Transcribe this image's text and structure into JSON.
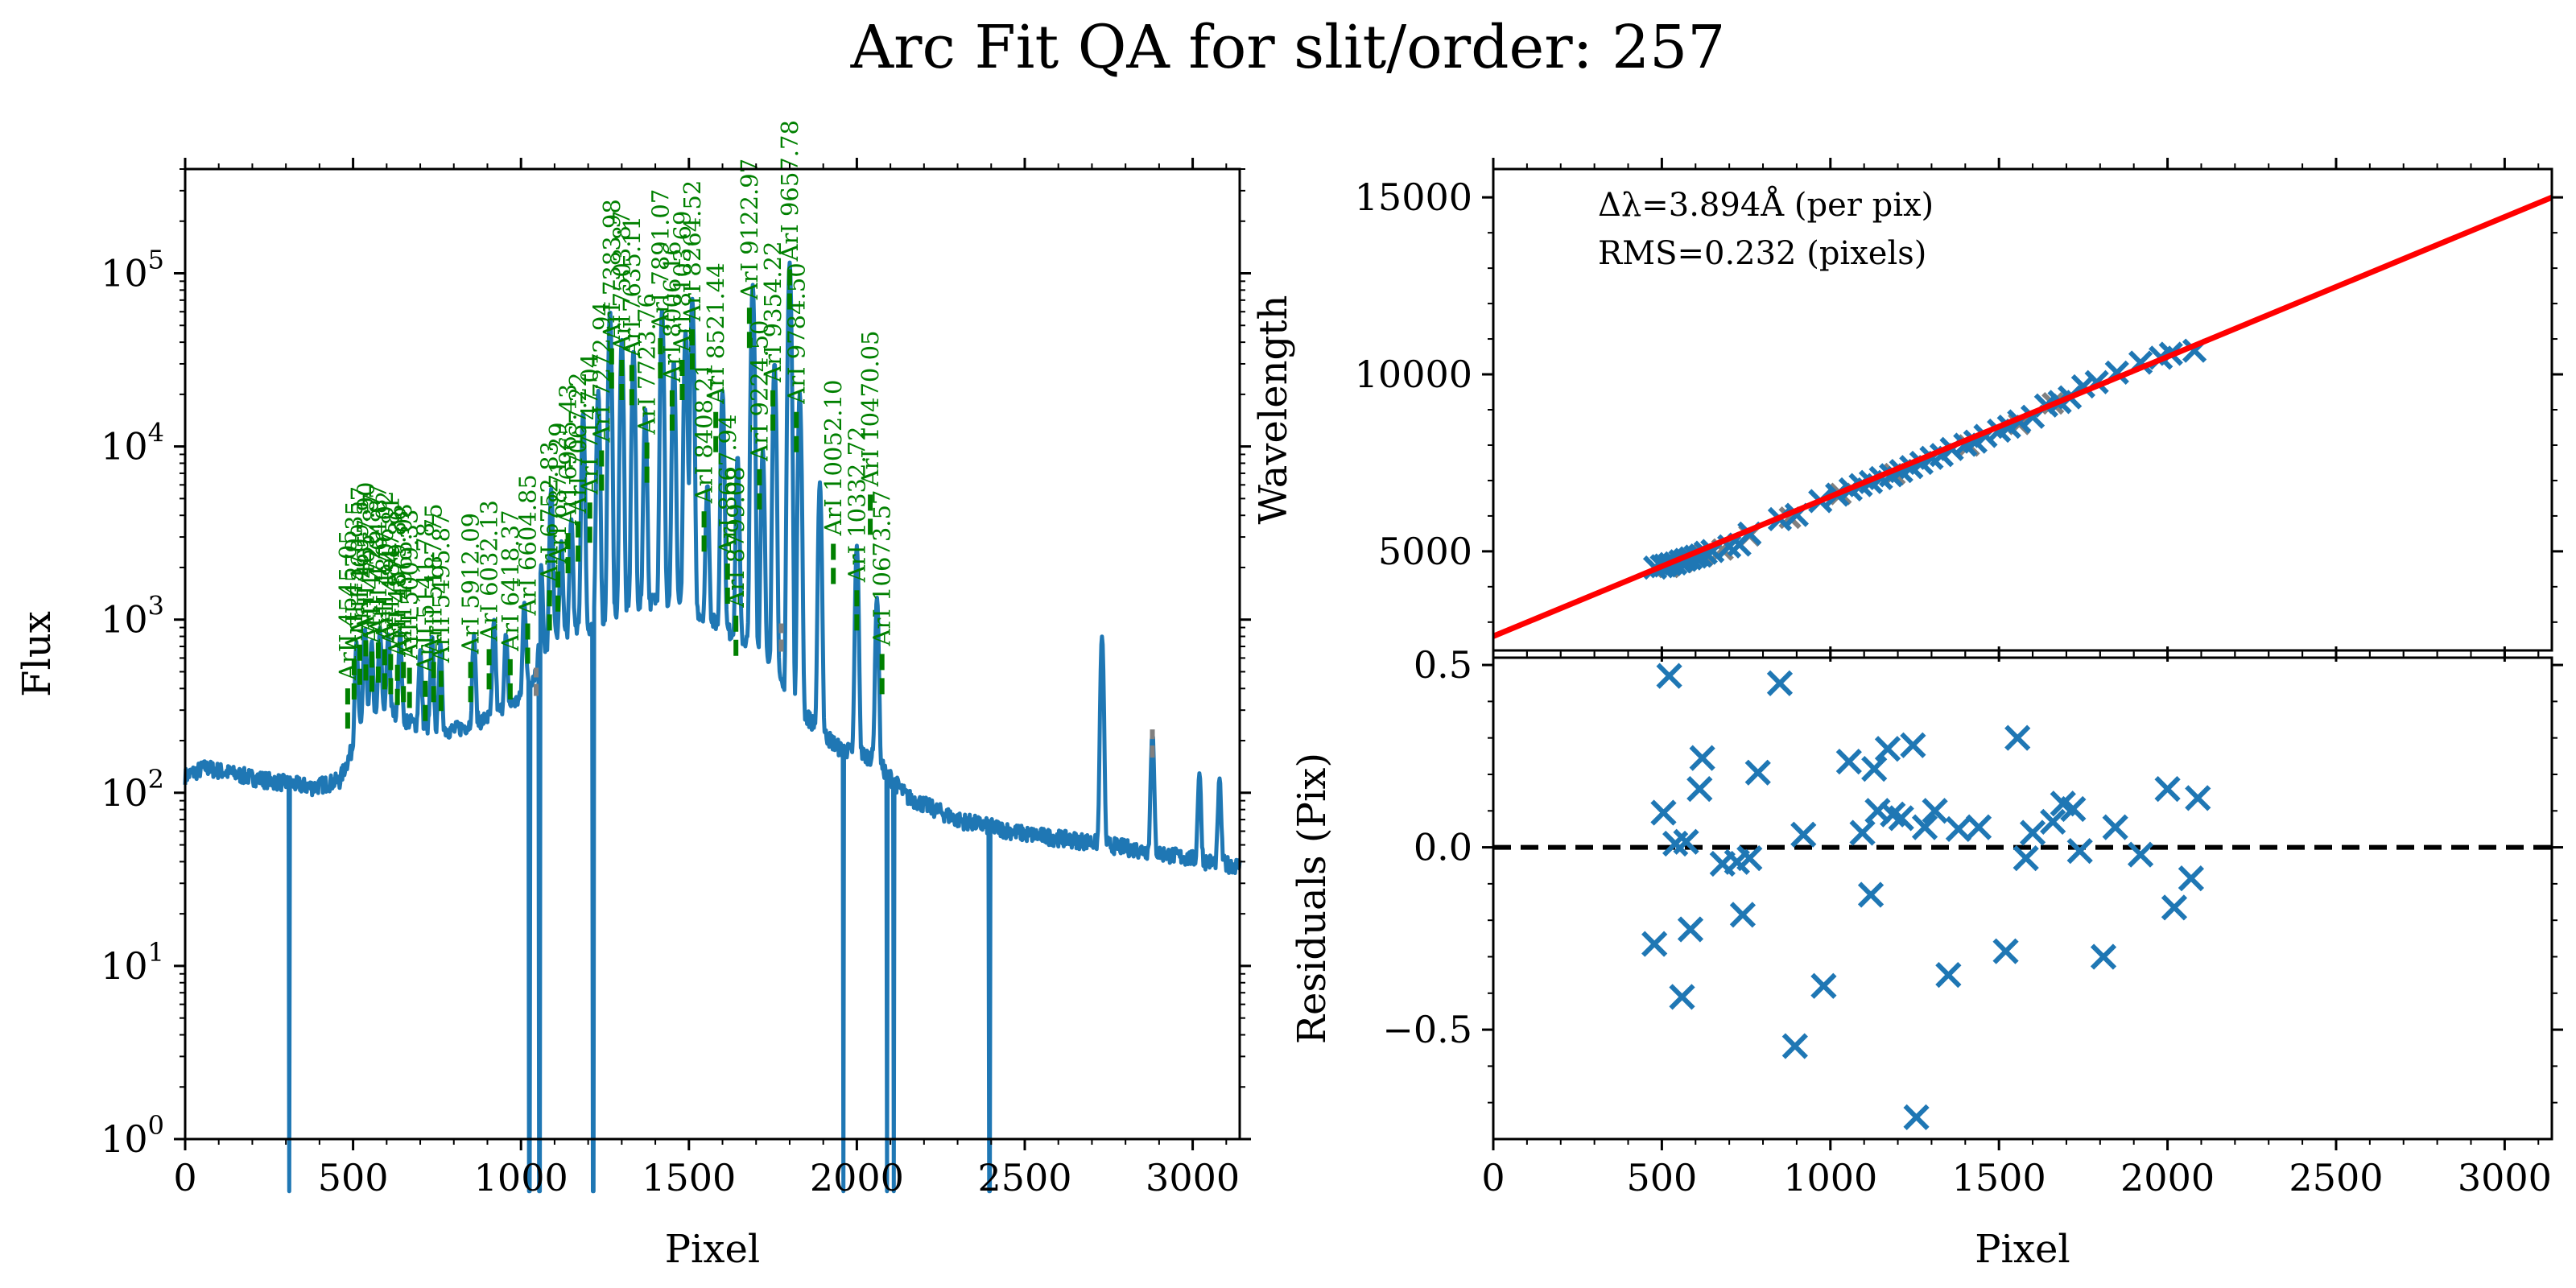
{
  "title": "Arc Fit QA for slit/order: 257",
  "colors": {
    "spectrum": "#1f77b4",
    "identified": "#008000",
    "unidentified": "#808080",
    "fit": "#ff0000",
    "points": "#1f77b4",
    "zero_line": "#000000"
  },
  "chart_data": [
    {
      "type": "line",
      "name": "spectrum",
      "xlabel": "Pixel",
      "ylabel": "Flux",
      "xlim": [
        0,
        3140
      ],
      "ylim": [
        1,
        400000
      ],
      "yscale": "log",
      "xticks": [
        0,
        500,
        1000,
        1500,
        2000,
        2500,
        3000
      ],
      "yticks": [
        {
          "value": 1,
          "base": "10",
          "exp": "0"
        },
        {
          "value": 10,
          "base": "10",
          "exp": "1"
        },
        {
          "value": 100,
          "base": "10",
          "exp": "2"
        },
        {
          "value": 1000,
          "base": "10",
          "exp": "3"
        },
        {
          "value": 10000,
          "base": "10",
          "exp": "4"
        },
        {
          "value": 100000,
          "base": "10",
          "exp": "5"
        }
      ],
      "continuum": [
        [
          0,
          125
        ],
        [
          60,
          140
        ],
        [
          150,
          128
        ],
        [
          250,
          118
        ],
        [
          380,
          108
        ],
        [
          460,
          118
        ],
        [
          520,
          230
        ],
        [
          600,
          300
        ],
        [
          700,
          240
        ],
        [
          800,
          230
        ],
        [
          900,
          270
        ],
        [
          1000,
          350
        ],
        [
          1100,
          800
        ],
        [
          1200,
          900
        ],
        [
          1300,
          1100
        ],
        [
          1400,
          1300
        ],
        [
          1500,
          1200
        ],
        [
          1600,
          900
        ],
        [
          1700,
          700
        ],
        [
          1800,
          350
        ],
        [
          1900,
          220
        ],
        [
          1950,
          180
        ],
        [
          2050,
          160
        ],
        [
          2150,
          95
        ],
        [
          2300,
          70
        ],
        [
          2500,
          58
        ],
        [
          2700,
          52
        ],
        [
          2900,
          45
        ],
        [
          3050,
          40
        ],
        [
          3140,
          38
        ]
      ],
      "peaks": [
        [
          510,
          520
        ],
        [
          535,
          650
        ],
        [
          555,
          480
        ],
        [
          580,
          600
        ],
        [
          605,
          530
        ],
        [
          640,
          560
        ],
        [
          700,
          420
        ],
        [
          735,
          560
        ],
        [
          760,
          480
        ],
        [
          860,
          560
        ],
        [
          920,
          700
        ],
        [
          955,
          500
        ],
        [
          1010,
          900
        ],
        [
          1060,
          1500
        ],
        [
          1090,
          5000
        ],
        [
          1120,
          2000
        ],
        [
          1150,
          3000
        ],
        [
          1185,
          15000
        ],
        [
          1230,
          20000
        ],
        [
          1265,
          60000
        ],
        [
          1300,
          40000
        ],
        [
          1335,
          35000
        ],
        [
          1370,
          15000
        ],
        [
          1420,
          60000
        ],
        [
          1455,
          30000
        ],
        [
          1490,
          45000
        ],
        [
          1510,
          70000
        ],
        [
          1555,
          5000
        ],
        [
          1600,
          20000
        ],
        [
          1645,
          8000
        ],
        [
          1690,
          85000
        ],
        [
          1720,
          9000
        ],
        [
          1755,
          30000
        ],
        [
          1800,
          115000
        ],
        [
          1830,
          20000
        ],
        [
          1890,
          6000
        ],
        [
          2000,
          2500
        ],
        [
          2060,
          1200
        ],
        [
          2730,
          750
        ],
        [
          2880,
          180
        ],
        [
          3020,
          90
        ],
        [
          3080,
          80
        ]
      ],
      "dips": [
        310,
        1025,
        1055,
        1215,
        1960,
        2090,
        2110,
        2395
      ],
      "identified_lines": [
        {
          "x": 484,
          "flux": 380,
          "label": "ArII 4545.05"
        },
        {
          "x": 503,
          "flux": 560,
          "label": "ArII 4579.35"
        },
        {
          "x": 520,
          "flux": 680,
          "label": "ArII 4609.57"
        },
        {
          "x": 538,
          "flux": 720,
          "label": "ArII 4657.90"
        },
        {
          "x": 556,
          "flux": 620,
          "label": "ArII 4726.87"
        },
        {
          "x": 575,
          "flux": 700,
          "label": "ArII 4764.87"
        },
        {
          "x": 594,
          "flux": 640,
          "label": "ArII 4806.02"
        },
        {
          "x": 612,
          "flux": 600,
          "label": "ArII 4847.81"
        },
        {
          "x": 632,
          "flux": 520,
          "label": "ArII 4879.86"
        },
        {
          "x": 650,
          "flux": 540,
          "label": "ArII 4965.08"
        },
        {
          "x": 668,
          "flux": 500,
          "label": "ArII 5009.33"
        },
        {
          "x": 715,
          "flux": 420,
          "label": "ArII 5141.78"
        },
        {
          "x": 740,
          "flux": 540,
          "label": "ArII 5187.75"
        },
        {
          "x": 762,
          "flux": 480,
          "label": "ArII 5495.87"
        },
        {
          "x": 850,
          "flux": 540,
          "label": "ArI 5912.09"
        },
        {
          "x": 905,
          "flux": 640,
          "label": "ArI 6032.13"
        },
        {
          "x": 968,
          "flux": 560,
          "label": "ArI 6418.37"
        },
        {
          "x": 1020,
          "flux": 900,
          "label": "ArI 6604.85"
        },
        {
          "x": 1085,
          "flux": 1400,
          "label": "ArI 6752.83"
        },
        {
          "x": 1110,
          "flux": 1800,
          "label": "ArI 6871.29"
        },
        {
          "x": 1140,
          "flux": 3000,
          "label": "ArI 6965.43"
        },
        {
          "x": 1170,
          "flux": 3500,
          "label": "ArI 7067.22"
        },
        {
          "x": 1205,
          "flux": 4500,
          "label": "ArI 7147.04"
        },
        {
          "x": 1240,
          "flux": 9000,
          "label": "ArI 7272.94"
        },
        {
          "x": 1270,
          "flux": 35000,
          "label": "ArI 7383.98"
        },
        {
          "x": 1300,
          "flux": 30000,
          "label": "ArI 7503.87"
        },
        {
          "x": 1330,
          "flux": 28000,
          "label": "ArI 7635.11"
        },
        {
          "x": 1375,
          "flux": 10000,
          "label": "ArI 7723.76"
        },
        {
          "x": 1415,
          "flux": 40000,
          "label": "ArI 7891.07"
        },
        {
          "x": 1450,
          "flux": 20000,
          "label": "ArI 8006.16"
        },
        {
          "x": 1480,
          "flux": 30000,
          "label": "ArI 8103.69"
        },
        {
          "x": 1510,
          "flux": 45000,
          "label": "ArI 8264.52"
        },
        {
          "x": 1545,
          "flux": 4000,
          "label": "ArI 8408.21"
        },
        {
          "x": 1580,
          "flux": 15000,
          "label": "ArI 8521.44"
        },
        {
          "x": 1615,
          "flux": 2000,
          "label": "ArI 8667.94"
        },
        {
          "x": 1640,
          "flux": 1000,
          "label": "ArI 8799.08"
        },
        {
          "x": 1680,
          "flux": 60000,
          "label": "ArI 9122.97"
        },
        {
          "x": 1710,
          "flux": 7000,
          "label": "ArI 9224.50"
        },
        {
          "x": 1750,
          "flux": 20000,
          "label": "ArI 9354.22"
        },
        {
          "x": 1800,
          "flux": 100000,
          "label": "ArI 9657.78"
        },
        {
          "x": 1820,
          "flux": 15000,
          "label": "ArI 9784.50"
        },
        {
          "x": 1930,
          "flux": 2600,
          "label": "ArI 10052.10"
        },
        {
          "x": 2000,
          "flux": 1400,
          "label": "ArI 10332.72"
        },
        {
          "x": 2040,
          "flux": 5000,
          "label": "ArI 10470.05"
        },
        {
          "x": 2075,
          "flux": 600,
          "label": "ArI 10673.57"
        }
      ],
      "unidentified_lines": [
        {
          "x": 1045,
          "flux": 500
        },
        {
          "x": 1775,
          "flux": 900
        },
        {
          "x": 2880,
          "flux": 220
        }
      ]
    },
    {
      "type": "scatter",
      "name": "wavelength_fit",
      "xlabel": "",
      "ylabel": "Wavelength",
      "xlim": [
        0,
        3140
      ],
      "ylim": [
        2200,
        15800
      ],
      "yticks": [
        5000,
        10000,
        15000
      ],
      "fit_line": [
        [
          0,
          2600
        ],
        [
          3140,
          15000
        ]
      ],
      "annotations": [
        "Δλ=3.894Å (per pix)",
        "RMS=0.232 (pixels)"
      ],
      "points": [
        [
          480,
          4540
        ],
        [
          500,
          4580
        ],
        [
          510,
          4600
        ],
        [
          525,
          4640
        ],
        [
          540,
          4660
        ],
        [
          555,
          4720
        ],
        [
          570,
          4760
        ],
        [
          585,
          4800
        ],
        [
          600,
          4850
        ],
        [
          615,
          4880
        ],
        [
          630,
          4960
        ],
        [
          650,
          5010
        ],
        [
          700,
          5140
        ],
        [
          730,
          5190
        ],
        [
          760,
          5500
        ],
        [
          850,
          5910
        ],
        [
          900,
          6030
        ],
        [
          970,
          6420
        ],
        [
          1020,
          6600
        ],
        [
          1060,
          6750
        ],
        [
          1090,
          6870
        ],
        [
          1120,
          6960
        ],
        [
          1150,
          7070
        ],
        [
          1180,
          7150
        ],
        [
          1210,
          7270
        ],
        [
          1240,
          7380
        ],
        [
          1270,
          7500
        ],
        [
          1300,
          7640
        ],
        [
          1330,
          7720
        ],
        [
          1360,
          7890
        ],
        [
          1400,
          8010
        ],
        [
          1430,
          8100
        ],
        [
          1460,
          8260
        ],
        [
          1500,
          8410
        ],
        [
          1530,
          8520
        ],
        [
          1560,
          8670
        ],
        [
          1600,
          8800
        ],
        [
          1640,
          9120
        ],
        [
          1680,
          9220
        ],
        [
          1710,
          9350
        ],
        [
          1750,
          9660
        ],
        [
          1790,
          9780
        ],
        [
          1850,
          10050
        ],
        [
          1920,
          10330
        ],
        [
          1980,
          10470
        ],
        [
          2010,
          10580
        ],
        [
          2080,
          10670
        ]
      ],
      "rejected_points": [
        [
          520,
          4560
        ],
        [
          560,
          4700
        ],
        [
          620,
          4870
        ],
        [
          680,
          5050
        ],
        [
          760,
          5450
        ],
        [
          880,
          5950
        ],
        [
          1030,
          6620
        ],
        [
          1190,
          7180
        ],
        [
          1410,
          7990
        ],
        [
          1560,
          8600
        ],
        [
          1660,
          9180
        ]
      ]
    },
    {
      "type": "scatter",
      "name": "residuals",
      "xlabel": "Pixel",
      "ylabel": "Residuals (Pix)",
      "xlim": [
        0,
        3140
      ],
      "ylim": [
        -0.8,
        0.52
      ],
      "yticks": [
        {
          "value": -0.5,
          "label": "−0.5"
        },
        {
          "value": 0.0,
          "label": "0.0"
        },
        {
          "value": 0.5,
          "label": "0.5"
        }
      ],
      "xticks": [
        0,
        500,
        1000,
        1500,
        2000,
        2500,
        3000
      ],
      "zero_line": 0.0,
      "points": [
        [
          478,
          -0.265
        ],
        [
          505,
          0.095
        ],
        [
          522,
          0.47
        ],
        [
          540,
          0.01
        ],
        [
          560,
          -0.41
        ],
        [
          572,
          0.015
        ],
        [
          585,
          -0.225
        ],
        [
          612,
          0.16
        ],
        [
          620,
          0.245
        ],
        [
          680,
          -0.045
        ],
        [
          723,
          -0.04
        ],
        [
          740,
          -0.185
        ],
        [
          760,
          -0.03
        ],
        [
          785,
          0.205
        ],
        [
          850,
          0.45
        ],
        [
          895,
          -0.545
        ],
        [
          920,
          0.035
        ],
        [
          980,
          -0.38
        ],
        [
          1055,
          0.235
        ],
        [
          1095,
          0.04
        ],
        [
          1120,
          -0.13
        ],
        [
          1130,
          0.215
        ],
        [
          1140,
          0.1
        ],
        [
          1170,
          0.27
        ],
        [
          1185,
          0.09
        ],
        [
          1210,
          0.08
        ],
        [
          1245,
          0.28
        ],
        [
          1255,
          -0.74
        ],
        [
          1280,
          0.055
        ],
        [
          1310,
          0.1
        ],
        [
          1350,
          -0.35
        ],
        [
          1380,
          0.05
        ],
        [
          1440,
          0.055
        ],
        [
          1520,
          -0.285
        ],
        [
          1555,
          0.3
        ],
        [
          1580,
          -0.03
        ],
        [
          1600,
          0.04
        ],
        [
          1660,
          0.07
        ],
        [
          1690,
          0.12
        ],
        [
          1720,
          0.105
        ],
        [
          1740,
          -0.01
        ],
        [
          1810,
          -0.3
        ],
        [
          1845,
          0.055
        ],
        [
          1920,
          -0.02
        ],
        [
          2000,
          0.16
        ],
        [
          2020,
          -0.165
        ],
        [
          2070,
          -0.085
        ],
        [
          2090,
          0.135
        ]
      ]
    }
  ]
}
